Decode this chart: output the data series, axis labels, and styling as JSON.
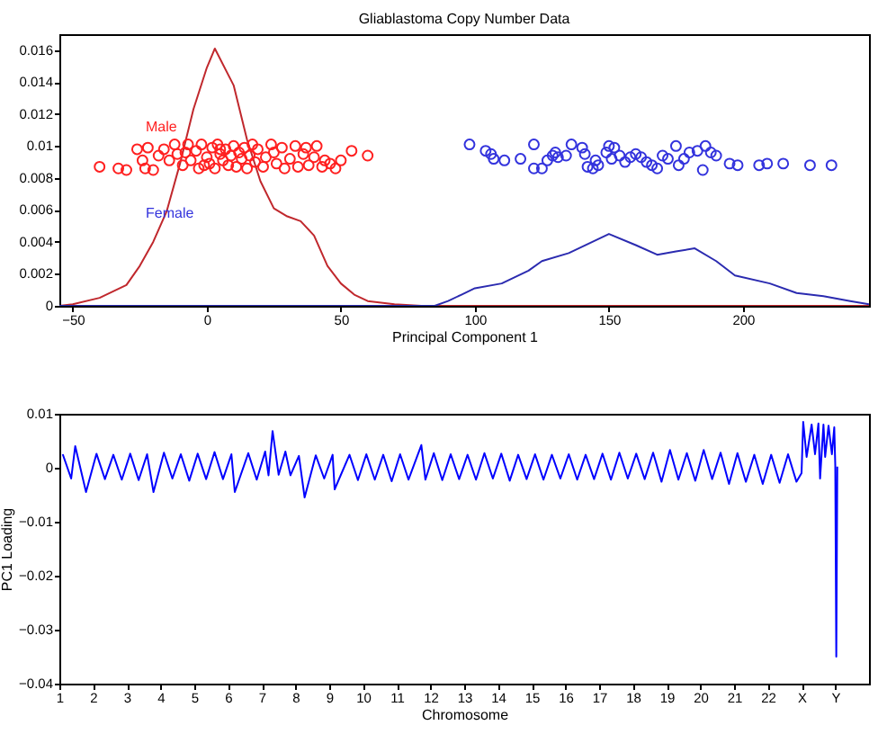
{
  "chart_data": [
    {
      "type": "scatter",
      "title": "Gliablastoma Copy Number Data",
      "xlabel": "Principal Component 1",
      "xlim": [
        -55,
        247
      ],
      "xticks": [
        -50,
        0,
        50,
        100,
        150,
        200
      ],
      "ylim": [
        0,
        0.017
      ],
      "yticks": [
        0,
        0.002,
        0.004,
        0.006,
        0.008,
        0.01,
        0.012,
        0.014,
        0.016
      ],
      "grid": false,
      "legend": false,
      "series": [
        {
          "type": "line",
          "color": "#c0282d",
          "x": [
            -55,
            -50,
            -40,
            -30,
            -25,
            -20,
            -15,
            -10,
            -5,
            0,
            3,
            10,
            15,
            20,
            25,
            30,
            35,
            40,
            45,
            50,
            55,
            60,
            70,
            80,
            247
          ],
          "values": [
            0,
            0.0001,
            0.0005,
            0.0013,
            0.0025,
            0.004,
            0.0059,
            0.0089,
            0.0123,
            0.0149,
            0.0161,
            0.0138,
            0.0104,
            0.0078,
            0.0061,
            0.0056,
            0.0053,
            0.0044,
            0.0025,
            0.0014,
            0.0007,
            0.0003,
            0.0001,
            0,
            0
          ]
        },
        {
          "type": "line",
          "color": "#2b2bb0",
          "x": [
            -55,
            85,
            90,
            95,
            100,
            110,
            120,
            125,
            135,
            150,
            160,
            168,
            175,
            182,
            190,
            197,
            210,
            220,
            230,
            240,
            247
          ],
          "values": [
            0,
            0,
            0.0003,
            0.0007,
            0.0011,
            0.0014,
            0.0022,
            0.0028,
            0.0033,
            0.0045,
            0.0038,
            0.0032,
            0.0034,
            0.0036,
            0.0028,
            0.0019,
            0.0014,
            0.0008,
            0.0006,
            0.0003,
            0.0001
          ]
        },
        {
          "name": "Male",
          "marker": "circle",
          "color": "#ff2020",
          "x": [
            -40,
            -33,
            -30,
            -26,
            -24,
            -23,
            -22,
            -20,
            -18,
            -16,
            -14,
            -12,
            -11,
            -9,
            -7,
            -6,
            -4,
            -3,
            -2,
            0,
            1,
            2,
            3,
            4,
            5,
            6,
            7,
            8,
            9,
            10,
            11,
            12,
            13,
            14,
            15,
            16,
            18,
            19,
            21,
            22,
            24,
            25,
            26,
            28,
            29,
            31,
            33,
            34,
            36,
            37,
            38,
            40,
            41,
            43,
            44,
            46,
            48,
            50,
            54,
            60,
            -8,
            5,
            17,
            -1
          ],
          "values": [
            0.0087,
            0.0086,
            0.0085,
            0.0098,
            0.0091,
            0.0086,
            0.0099,
            0.0085,
            0.0094,
            0.0098,
            0.0091,
            0.0101,
            0.0095,
            0.0088,
            0.0101,
            0.0091,
            0.0097,
            0.0086,
            0.0101,
            0.0093,
            0.0089,
            0.0099,
            0.0086,
            0.0101,
            0.0095,
            0.0091,
            0.0098,
            0.0088,
            0.0094,
            0.01,
            0.0087,
            0.0096,
            0.0092,
            0.0099,
            0.0086,
            0.0094,
            0.009,
            0.0098,
            0.0087,
            0.0093,
            0.0101,
            0.0096,
            0.0089,
            0.0099,
            0.0086,
            0.0092,
            0.01,
            0.0087,
            0.0095,
            0.0099,
            0.0088,
            0.0093,
            0.01,
            0.0087,
            0.0091,
            0.0089,
            0.0086,
            0.0091,
            0.0097,
            0.0094,
            0.0096,
            0.0098,
            0.0101,
            0.0088
          ]
        },
        {
          "name": "Female",
          "marker": "circle",
          "color": "#3333dd",
          "x": [
            98,
            104,
            106,
            107,
            111,
            117,
            122,
            122,
            125,
            127,
            129,
            130,
            131,
            134,
            136,
            140,
            141,
            142,
            144,
            145,
            146,
            149,
            150,
            151,
            152,
            154,
            156,
            158,
            160,
            162,
            164,
            168,
            172,
            175,
            176,
            178,
            180,
            183,
            185,
            186,
            188,
            190,
            195,
            198,
            206,
            209,
            215,
            225,
            233,
            166,
            170
          ],
          "values": [
            0.0101,
            0.0097,
            0.0095,
            0.0092,
            0.0091,
            0.0092,
            0.0101,
            0.0086,
            0.0086,
            0.0091,
            0.0094,
            0.0096,
            0.0093,
            0.0094,
            0.0101,
            0.0099,
            0.0095,
            0.0087,
            0.0086,
            0.0091,
            0.0088,
            0.0096,
            0.01,
            0.0092,
            0.0099,
            0.0094,
            0.009,
            0.0093,
            0.0095,
            0.0093,
            0.009,
            0.0086,
            0.0092,
            0.01,
            0.0088,
            0.0092,
            0.0096,
            0.0097,
            0.0085,
            0.01,
            0.0096,
            0.0094,
            0.0089,
            0.0088,
            0.0088,
            0.0089,
            0.0089,
            0.0088,
            0.0088,
            0.0088,
            0.0094
          ]
        }
      ]
    },
    {
      "type": "line",
      "xlabel": "Chromosome",
      "ylabel": "PC1 Loading",
      "xlim": [
        1,
        25
      ],
      "xticks": [
        1,
        2,
        3,
        4,
        5,
        6,
        7,
        8,
        9,
        10,
        11,
        12,
        13,
        14,
        15,
        16,
        17,
        18,
        19,
        20,
        21,
        22,
        {
          "value": 23,
          "label": "X"
        },
        {
          "value": 24,
          "label": "Y"
        }
      ],
      "ylim": [
        -0.04,
        0.01
      ],
      "yticks": [
        -0.04,
        -0.03,
        -0.02,
        -0.01,
        0,
        0.01
      ],
      "grid": false,
      "series": [
        {
          "color": "#0000ff",
          "x": [
            1.1,
            1.35,
            1.47,
            1.79,
            2.1,
            2.35,
            2.6,
            2.85,
            3.1,
            3.35,
            3.6,
            3.79,
            4.1,
            4.35,
            4.6,
            4.85,
            5.1,
            5.35,
            5.6,
            5.85,
            6.1,
            6.2,
            6.6,
            6.85,
            7.1,
            7.2,
            7.32,
            7.5,
            7.7,
            7.85,
            8.1,
            8.27,
            8.6,
            8.85,
            9.1,
            9.16,
            9.6,
            9.85,
            10.1,
            10.35,
            10.6,
            10.85,
            11.1,
            11.35,
            11.73,
            11.85,
            12.1,
            12.35,
            12.6,
            12.85,
            13.1,
            13.35,
            13.6,
            13.85,
            14.1,
            14.35,
            14.6,
            14.85,
            15.1,
            15.35,
            15.6,
            15.85,
            16.1,
            16.35,
            16.6,
            16.85,
            17.1,
            17.35,
            17.6,
            17.85,
            18.1,
            18.35,
            18.6,
            18.85,
            19.1,
            19.35,
            19.6,
            19.85,
            20.1,
            20.35,
            20.6,
            20.85,
            21.1,
            21.35,
            21.6,
            21.85,
            22.1,
            22.35,
            22.6,
            22.85,
            23,
            23.05,
            23.15,
            23.3,
            23.4,
            23.5,
            23.55,
            23.65,
            23.7,
            23.8,
            23.9,
            23.97,
            24,
            24.03,
            24.06
          ],
          "values": [
            0.0025,
            -0.002,
            0.004,
            -0.0045,
            0.0026,
            -0.0021,
            0.0024,
            -0.0022,
            0.0026,
            -0.0023,
            0.0025,
            -0.0045,
            0.0028,
            -0.002,
            0.0025,
            -0.0024,
            0.0026,
            -0.0021,
            0.0029,
            -0.0021,
            0.0025,
            -0.0045,
            0.0027,
            -0.0022,
            0.003,
            -0.0014,
            0.0068,
            -0.0013,
            0.003,
            -0.0014,
            0.0022,
            -0.0055,
            0.0023,
            -0.002,
            0.0024,
            -0.004,
            0.0024,
            -0.0023,
            0.0025,
            -0.0022,
            0.0024,
            -0.0025,
            0.0025,
            -0.0022,
            0.0042,
            -0.0022,
            0.0027,
            -0.0023,
            0.0025,
            -0.0021,
            0.0024,
            -0.0022,
            0.0027,
            -0.002,
            0.0026,
            -0.0024,
            0.0024,
            -0.0021,
            0.0025,
            -0.0022,
            0.0024,
            -0.002,
            0.0025,
            -0.0022,
            0.0024,
            -0.0021,
            0.0026,
            -0.0022,
            0.0028,
            -0.002,
            0.0026,
            -0.0021,
            0.0028,
            -0.0026,
            0.0033,
            -0.0022,
            0.0027,
            -0.0024,
            0.0033,
            -0.0021,
            0.0028,
            -0.003,
            0.0027,
            -0.0026,
            0.0024,
            -0.003,
            0.0024,
            -0.0028,
            0.0025,
            -0.0026,
            -0.001,
            0.0085,
            0.002,
            0.008,
            0.0025,
            0.0082,
            -0.002,
            0.008,
            0.002,
            0.0078,
            0.0025,
            0.0075,
            0.0005,
            -0.035,
            0.0002
          ]
        }
      ]
    }
  ]
}
